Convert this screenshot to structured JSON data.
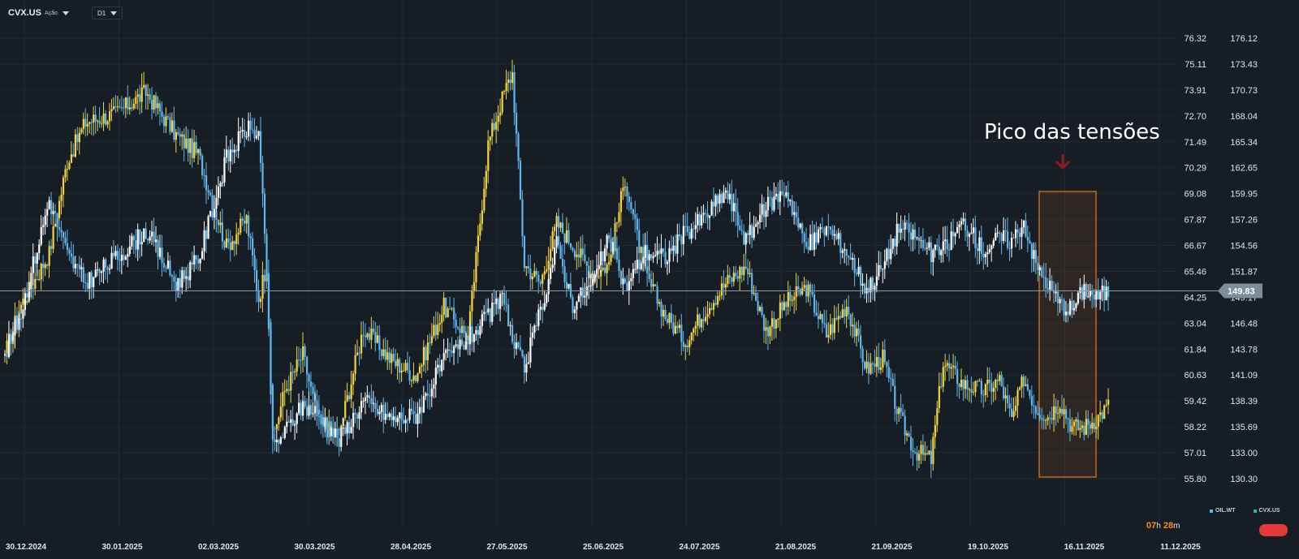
{
  "toolbar": {
    "symbol": "CVX.US",
    "symbol_type": "Ação",
    "timeframe": "D1"
  },
  "annotation": {
    "text": "Pico das tensões",
    "arrow_color": "#8b1d1d",
    "box_color": "#f07a16"
  },
  "live_price_label": "149.83",
  "countdown": {
    "hours": "07",
    "h_unit": "h",
    "minutes": "28",
    "m_unit": "m"
  },
  "colors": {
    "background": "#161d25",
    "oil_up": "#f5d43c",
    "oil_down": "#5fb7ec",
    "cvx_up": "#ffffff",
    "cvx_down": "#5fb7ec",
    "price_line": "#8a9aa8",
    "grid": "#1f2a34"
  },
  "chart_data": {
    "type": "candlestick",
    "title": "",
    "left_axis_ticks": [
      "76.32",
      "75.11",
      "73.91",
      "72.70",
      "71.49",
      "70.29",
      "69.08",
      "67.87",
      "66.67",
      "65.46",
      "64.25",
      "63.04",
      "61.84",
      "60.63",
      "59.42",
      "58.22",
      "57.01",
      "55.80"
    ],
    "right_axis_ticks": [
      "176.12",
      "173.43",
      "170.73",
      "168.04",
      "165.34",
      "162.65",
      "159.95",
      "157.26",
      "154.56",
      "151.87",
      "149.17",
      "146.48",
      "143.78",
      "141.09",
      "138.39",
      "135.69",
      "133.00",
      "130.30"
    ],
    "x_tick_labels": [
      "30.12.2024",
      "30.01.2025",
      "02.03.2025",
      "30.03.2025",
      "28.04.2025",
      "27.05.2025",
      "25.06.2025",
      "24.07.2025",
      "21.08.2025",
      "21.09.2025",
      "19.10.2025",
      "16.11.2025",
      "11.12.2025"
    ],
    "oil_range": [
      55.8,
      76.32
    ],
    "cvx_range": [
      130.3,
      176.12
    ],
    "last_cvx": 149.83,
    "legend_position": "bottom-right",
    "series": [
      {
        "name": "OIL.WT",
        "anchors": [
          [
            0,
            61.6
          ],
          [
            8,
            63.9
          ],
          [
            22,
            66.3
          ],
          [
            31,
            70.6
          ],
          [
            40,
            72.4
          ],
          [
            55,
            72.8
          ],
          [
            70,
            73.8
          ],
          [
            85,
            71.8
          ],
          [
            96,
            70.9
          ],
          [
            110,
            66.6
          ],
          [
            120,
            67.9
          ],
          [
            126,
            64.2
          ],
          [
            130,
            65.8
          ],
          [
            133,
            57.7
          ],
          [
            139,
            59.9
          ],
          [
            148,
            61.6
          ],
          [
            156,
            58.3
          ],
          [
            166,
            57.9
          ],
          [
            178,
            62.8
          ],
          [
            192,
            61.3
          ],
          [
            204,
            60.6
          ],
          [
            218,
            63.8
          ],
          [
            230,
            62.4
          ],
          [
            240,
            71.4
          ],
          [
            248,
            73.8
          ],
          [
            252,
            74.7
          ],
          [
            258,
            65.8
          ],
          [
            266,
            64.9
          ],
          [
            274,
            67.7
          ],
          [
            282,
            66.7
          ],
          [
            292,
            65.3
          ],
          [
            300,
            65.8
          ],
          [
            308,
            69.8
          ],
          [
            318,
            65.3
          ],
          [
            328,
            63.4
          ],
          [
            338,
            62.2
          ],
          [
            348,
            63.7
          ],
          [
            358,
            64.9
          ],
          [
            368,
            65.7
          ],
          [
            378,
            62.7
          ],
          [
            388,
            64.0
          ],
          [
            398,
            64.7
          ],
          [
            408,
            62.5
          ],
          [
            418,
            63.9
          ],
          [
            428,
            60.9
          ],
          [
            436,
            61.4
          ],
          [
            444,
            58.7
          ],
          [
            452,
            57.1
          ],
          [
            460,
            56.7
          ],
          [
            466,
            61.2
          ],
          [
            476,
            60.2
          ],
          [
            486,
            59.9
          ],
          [
            494,
            60.4
          ],
          [
            500,
            58.5
          ],
          [
            506,
            60.5
          ],
          [
            512,
            59.1
          ],
          [
            518,
            58.7
          ],
          [
            524,
            59.4
          ],
          [
            530,
            58.2
          ],
          [
            536,
            58.2
          ],
          [
            542,
            58.6
          ],
          [
            548,
            59.2
          ]
        ]
      },
      {
        "name": "CVX.US",
        "anchors": [
          [
            0,
            143.2
          ],
          [
            8,
            147.6
          ],
          [
            22,
            159.3
          ],
          [
            31,
            153.6
          ],
          [
            40,
            150.7
          ],
          [
            55,
            153.2
          ],
          [
            70,
            156.1
          ],
          [
            85,
            150.6
          ],
          [
            96,
            153.0
          ],
          [
            110,
            163.6
          ],
          [
            120,
            166.7
          ],
          [
            126,
            166.2
          ],
          [
            130,
            151.7
          ],
          [
            133,
            133.5
          ],
          [
            139,
            135.2
          ],
          [
            148,
            137.9
          ],
          [
            156,
            137.1
          ],
          [
            166,
            134.3
          ],
          [
            178,
            138.4
          ],
          [
            192,
            136.5
          ],
          [
            204,
            136.9
          ],
          [
            218,
            142.5
          ],
          [
            230,
            144.9
          ],
          [
            240,
            147.1
          ],
          [
            248,
            149.4
          ],
          [
            252,
            144.5
          ],
          [
            258,
            141.8
          ],
          [
            266,
            147.7
          ],
          [
            274,
            154.7
          ],
          [
            282,
            148.5
          ],
          [
            292,
            150.6
          ],
          [
            300,
            155.3
          ],
          [
            308,
            150.1
          ],
          [
            318,
            153.9
          ],
          [
            328,
            153.3
          ],
          [
            338,
            155.9
          ],
          [
            348,
            157.6
          ],
          [
            358,
            160.2
          ],
          [
            368,
            155.1
          ],
          [
            378,
            158.6
          ],
          [
            388,
            160.4
          ],
          [
            398,
            154.3
          ],
          [
            408,
            156.5
          ],
          [
            418,
            154.0
          ],
          [
            428,
            150.0
          ],
          [
            436,
            152.3
          ],
          [
            444,
            156.5
          ],
          [
            452,
            155.5
          ],
          [
            460,
            153.7
          ],
          [
            466,
            154.1
          ],
          [
            476,
            157.0
          ],
          [
            486,
            154.0
          ],
          [
            494,
            155.4
          ],
          [
            500,
            155.0
          ],
          [
            506,
            157.1
          ],
          [
            512,
            152.5
          ],
          [
            518,
            150.5
          ],
          [
            524,
            148.5
          ],
          [
            530,
            147.9
          ],
          [
            536,
            150.1
          ],
          [
            542,
            149.2
          ],
          [
            548,
            149.8
          ]
        ]
      }
    ]
  }
}
